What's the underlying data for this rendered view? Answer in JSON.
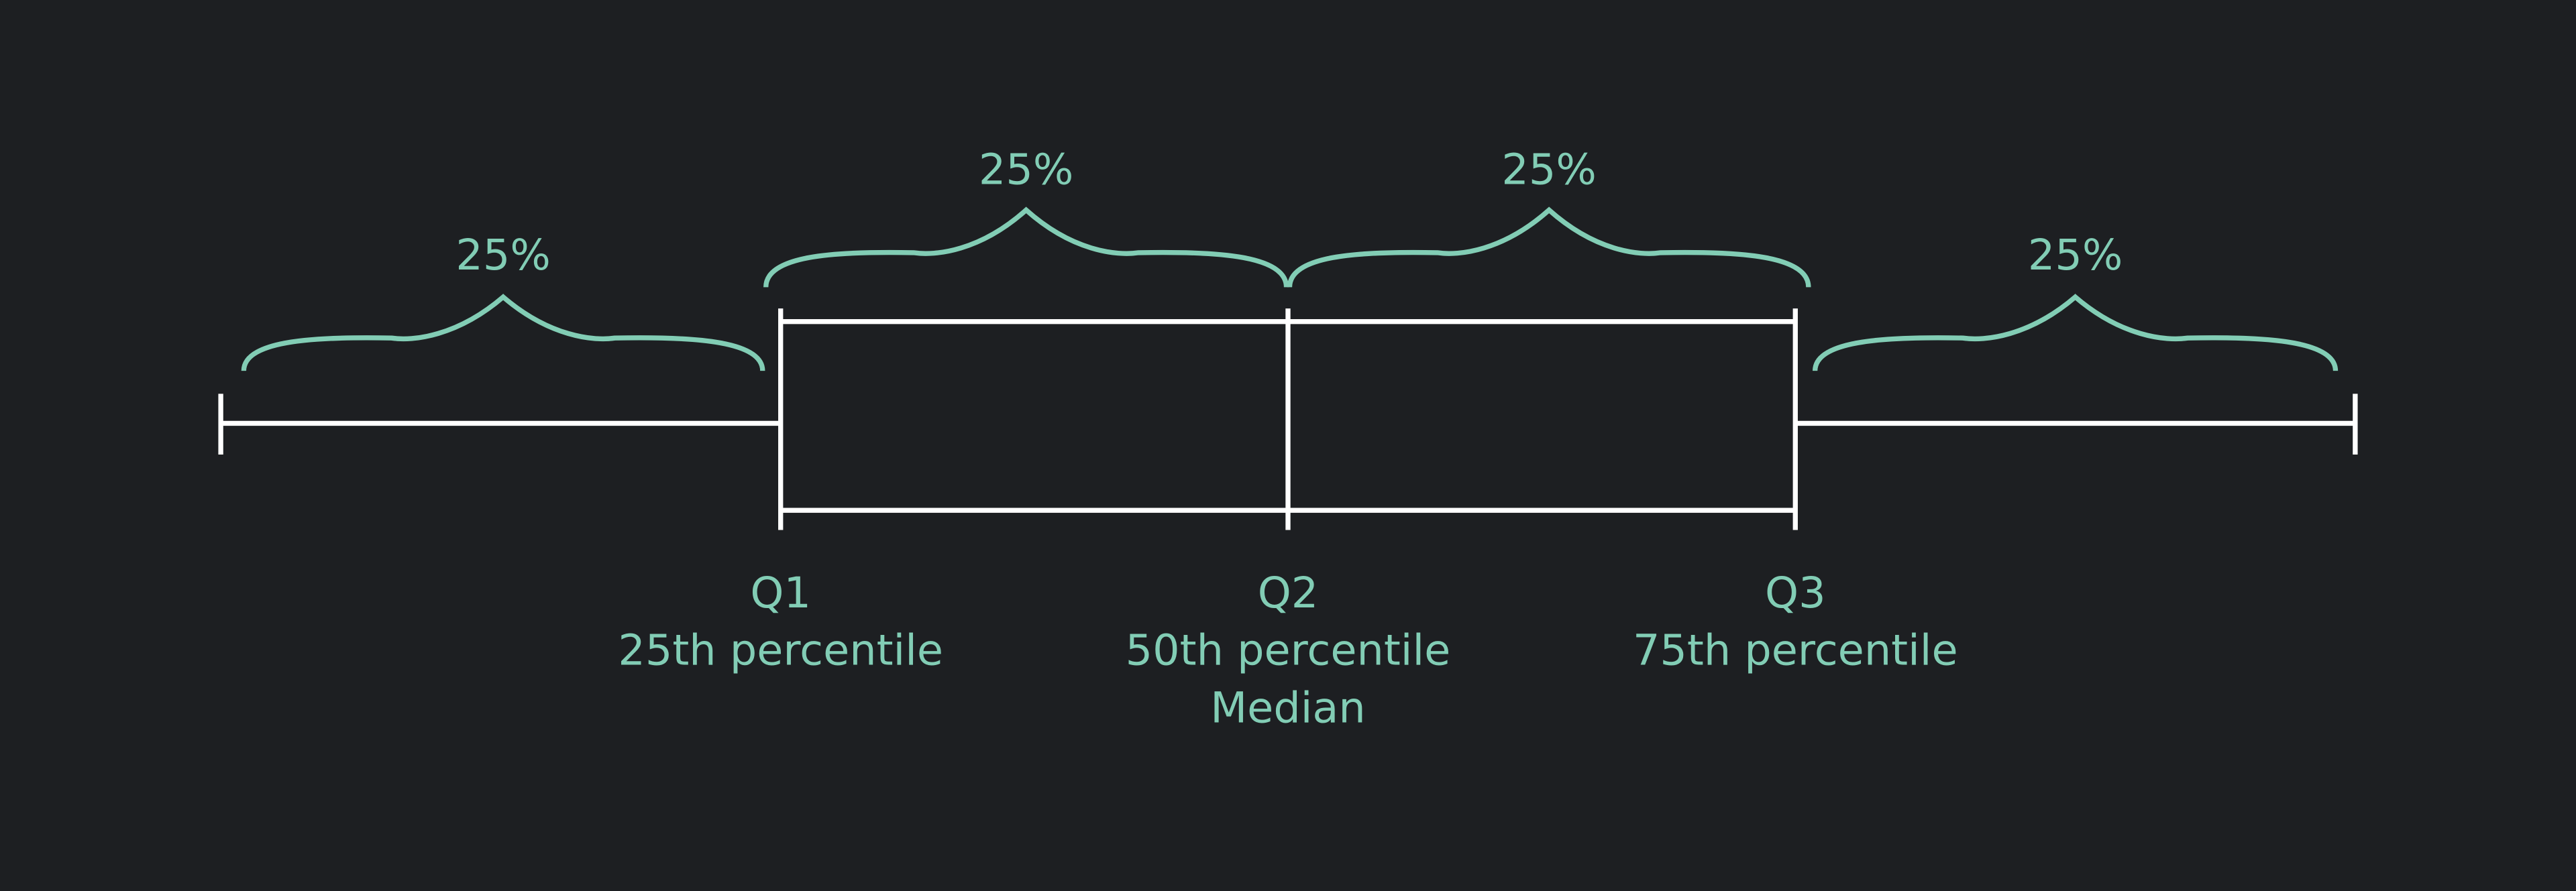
{
  "braces": [
    {
      "label": "25%"
    },
    {
      "label": "25%"
    },
    {
      "label": "25%"
    },
    {
      "label": "25%"
    }
  ],
  "quartiles": [
    {
      "lines": [
        "Q1",
        "25th percentile"
      ]
    },
    {
      "lines": [
        "Q2",
        "50th percentile",
        "Median"
      ]
    },
    {
      "lines": [
        "Q3",
        "75th percentile"
      ]
    }
  ]
}
